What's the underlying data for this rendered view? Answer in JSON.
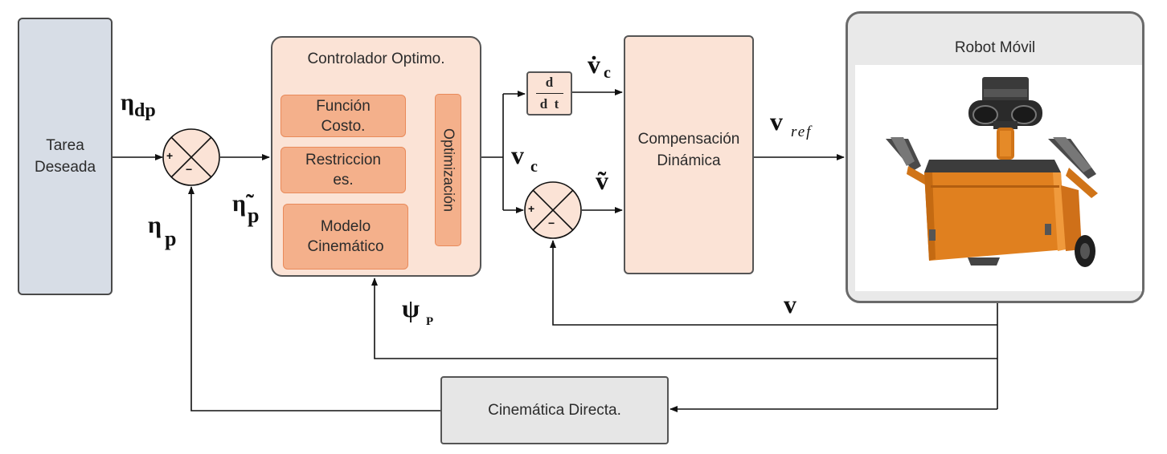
{
  "blocks": {
    "tarea_line1": "Tarea",
    "tarea_line2": "Deseada",
    "controller_title": "Controlador Optimo.",
    "cost_line1": "Función",
    "cost_line2": "Costo.",
    "restr_line1": "Restriccion",
    "restr_line2": "es.",
    "model_line1": "Modelo",
    "model_line2": "Cinemático",
    "optimization": "Optimización",
    "deriv_num": "d",
    "deriv_den": "d  t",
    "comp_line1": "Compensación",
    "comp_line2": "Dinámica",
    "robot_title": "Robot Móvil",
    "kinematics": "Cinemática Directa."
  },
  "signals": {
    "eta_dp_sym": "η",
    "eta_dp_sub": "dp",
    "eta_p_sym": "η",
    "eta_p_sub": "p",
    "eta_tilde_sym": "η̃",
    "eta_tilde_sub": "p",
    "psi_sym": "ψ",
    "psi_sub": "P",
    "vc_dot_sym": "v̇",
    "vc_dot_sub": "c",
    "vc_sym": "v",
    "vc_sub": "c",
    "v_tilde_sym": "ṽ",
    "vref_sym": "v",
    "vref_sub": "ref",
    "v_sym": "v"
  },
  "summing": {
    "plus": "+",
    "minus": "−"
  },
  "colors": {
    "tarea_fill": "#d7dde6",
    "controller_fill": "#fbe3d6",
    "subblock_fill": "#f4b08b",
    "robot_body": "#e0801f",
    "robot_frame_fill": "#e9e9e9",
    "line": "#111111",
    "orange_arrow": "#ed7d31"
  }
}
